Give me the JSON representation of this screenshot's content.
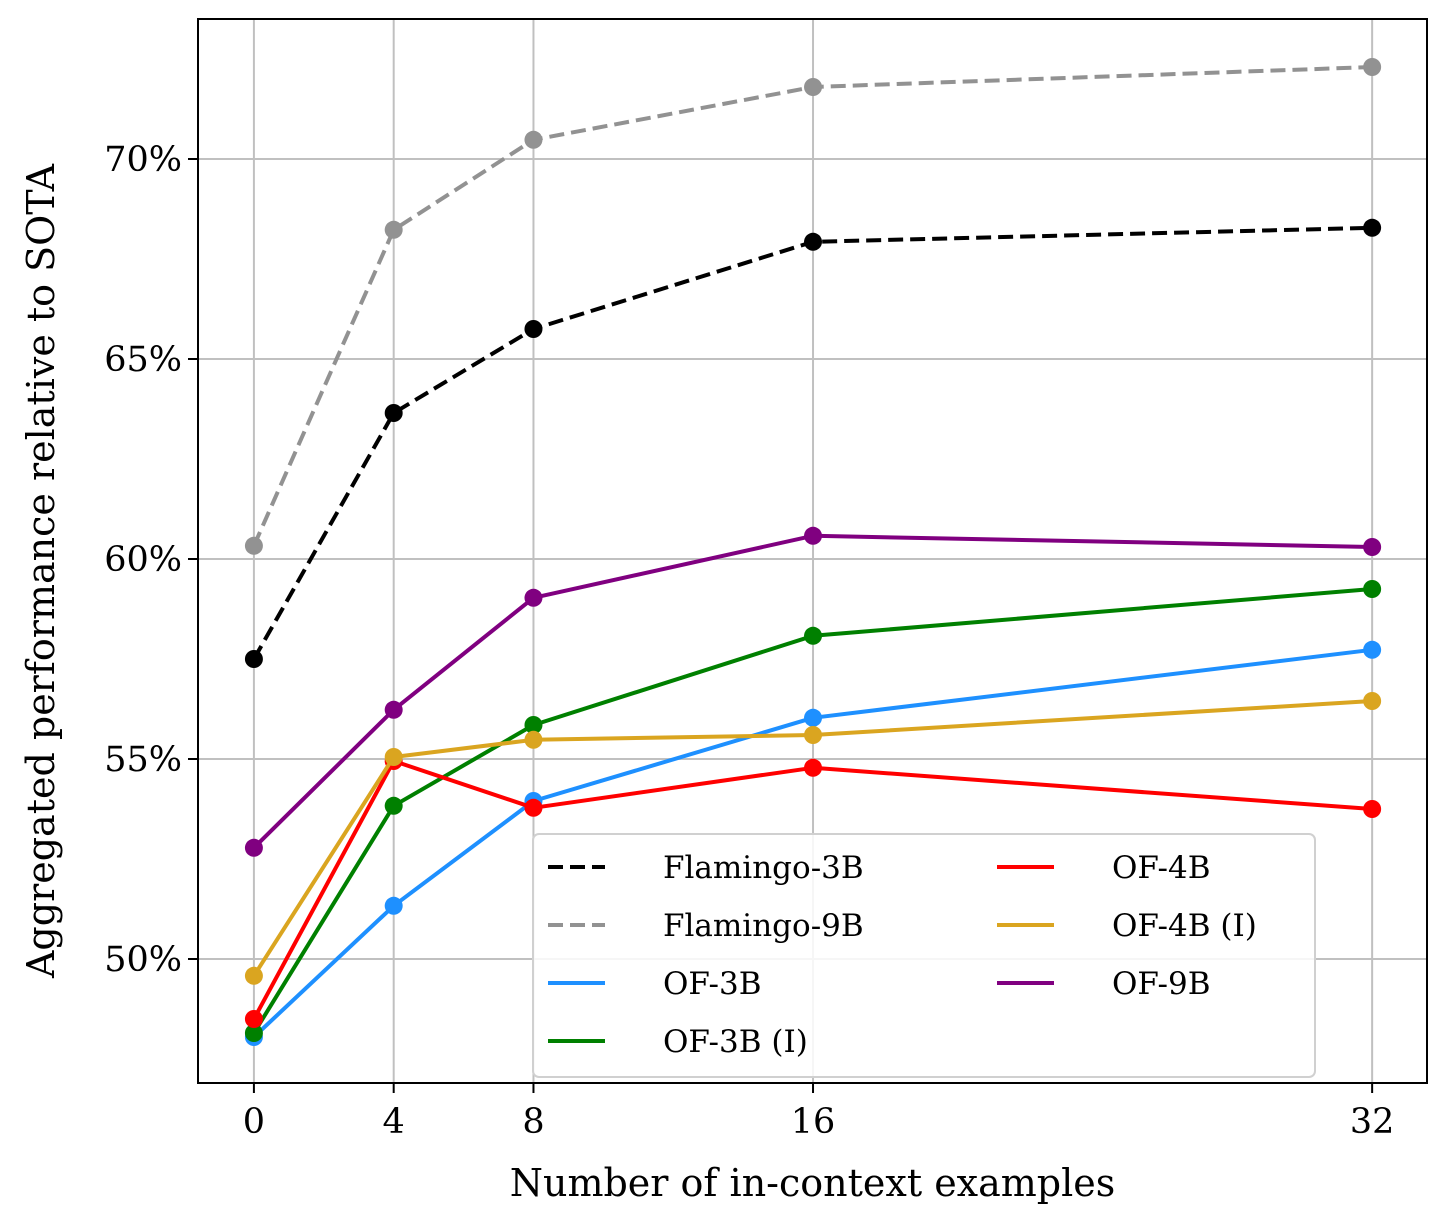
{
  "chart_data": {
    "type": "line",
    "title": "",
    "xlabel": "Number of in-context examples",
    "ylabel": "Aggregated performance relative to SOTA",
    "x": [
      0,
      4,
      8,
      16,
      32
    ],
    "xticks": [
      0,
      4,
      8,
      16,
      32
    ],
    "xtick_labels": [
      "0",
      "4",
      "8",
      "16",
      "32"
    ],
    "yticks": [
      50,
      55,
      60,
      65,
      70
    ],
    "ytick_labels": [
      "50%",
      "55%",
      "60%",
      "65%",
      "70%"
    ],
    "xlim": [
      -1.6,
      33.57
    ],
    "ylim": [
      46.9,
      73.5
    ],
    "grid": true,
    "legend_placement": "lower-right",
    "legend_columns": 2,
    "series": [
      {
        "name": "Flamingo-3B",
        "color": "#000000",
        "style": "dashed",
        "values": [
          57.5,
          63.65,
          65.75,
          67.93,
          68.28
        ]
      },
      {
        "name": "Flamingo-9B",
        "color": "#929292",
        "style": "dashed",
        "values": [
          60.33,
          68.23,
          70.48,
          71.8,
          72.3
        ]
      },
      {
        "name": "OF-3B",
        "color": "#1e90ff",
        "style": "solid",
        "values": [
          48.05,
          51.33,
          53.95,
          56.03,
          57.73
        ]
      },
      {
        "name": "OF-3B (I)",
        "color": "#008000",
        "style": "solid",
        "values": [
          48.15,
          53.83,
          55.85,
          58.08,
          59.25
        ]
      },
      {
        "name": "OF-4B",
        "color": "#ff0000",
        "style": "solid",
        "values": [
          48.5,
          54.95,
          53.78,
          54.78,
          53.75
        ]
      },
      {
        "name": "OF-4B (I)",
        "color": "#daa520",
        "style": "solid",
        "values": [
          49.58,
          55.05,
          55.48,
          55.6,
          56.45
        ]
      },
      {
        "name": "OF-9B",
        "color": "#800080",
        "style": "solid",
        "values": [
          52.78,
          56.23,
          59.03,
          60.58,
          60.3
        ]
      }
    ]
  }
}
